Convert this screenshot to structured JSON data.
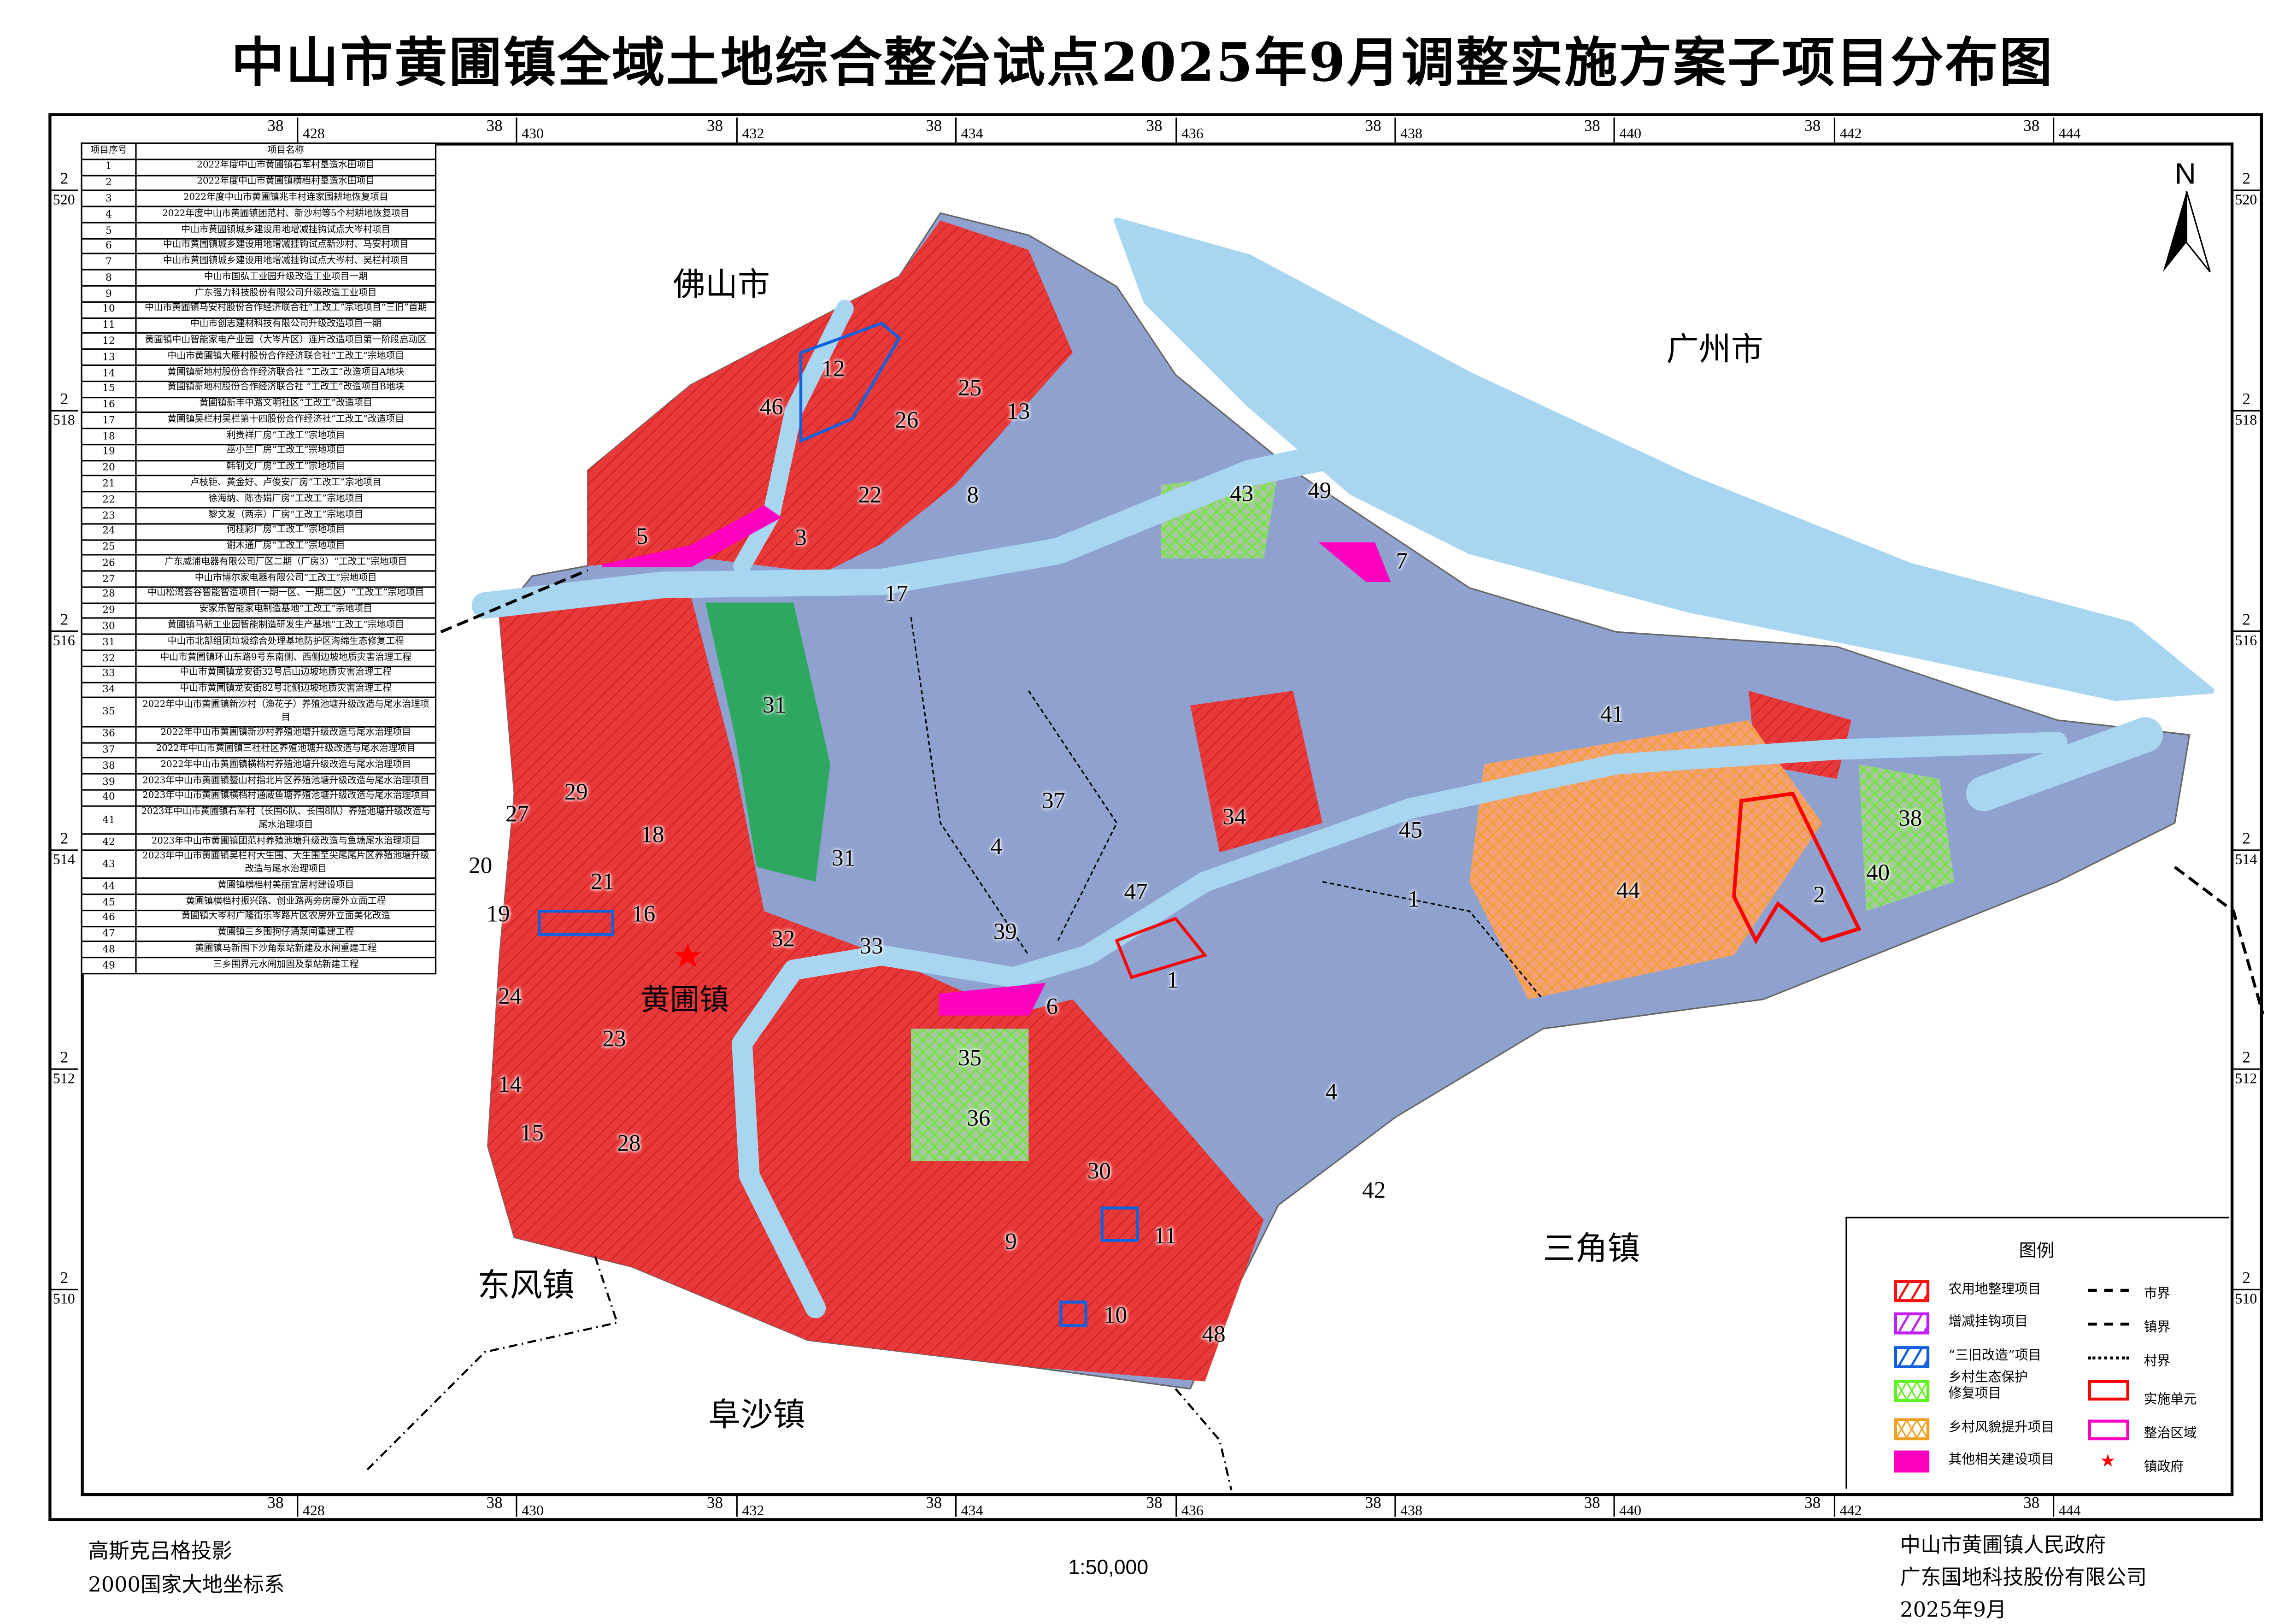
{
  "title": "中山市黄圃镇全域土地综合整治试点2025年9月调整实施方案子项目分布图",
  "grid": {
    "x_prefix": "38",
    "x_labels": [
      "428",
      "430",
      "432",
      "434",
      "436",
      "438",
      "440",
      "442",
      "444"
    ],
    "y_prefix": "2",
    "y_labels": [
      "520",
      "518",
      "516",
      "514",
      "512",
      "510"
    ]
  },
  "north_label": "N",
  "places": {
    "foshan": "佛山市",
    "guangzhou": "广州市",
    "huangpu": "黄圃镇",
    "sanjiao": "三角镇",
    "dongfeng": "东风镇",
    "fusha": "阜沙镇"
  },
  "project_labels": [
    "12",
    "46",
    "25",
    "13",
    "26",
    "22",
    "8",
    "3",
    "5",
    "43",
    "49",
    "7",
    "17",
    "31",
    "41",
    "37",
    "34",
    "45",
    "38",
    "40",
    "44",
    "2",
    "1",
    "47",
    "29",
    "27",
    "18",
    "4",
    "31",
    "20",
    "21",
    "16",
    "19",
    "39",
    "32",
    "33",
    "1",
    "6",
    "24",
    "23",
    "35",
    "4",
    "14",
    "36",
    "15",
    "28",
    "30",
    "42",
    "9",
    "11",
    "10",
    "48"
  ],
  "table": {
    "headers": [
      "项目序号",
      "项目名称"
    ],
    "rows": [
      [
        "1",
        "2022年度中山市黄圃镇石军村垦造水田项目"
      ],
      [
        "2",
        "2022年度中山市黄圃镇横档村垦造水田项目"
      ],
      [
        "3",
        "2022年度中山市黄圃镇兆丰村连家围耕地恢复项目"
      ],
      [
        "4",
        "2022年度中山市黄圃镇团范村、新沙村等5个村耕地恢复项目"
      ],
      [
        "5",
        "中山市黄圃镇城乡建设用地增减挂钩试点大岑村项目"
      ],
      [
        "6",
        "中山市黄圃镇城乡建设用地增减挂钩试点新沙村、马安村项目"
      ],
      [
        "7",
        "中山市黄圃镇城乡建设用地增减挂钩试点大岑村、吴栏村项目"
      ],
      [
        "8",
        "中山市国弘工业园升级改造工业项目一期"
      ],
      [
        "9",
        "广东强力科技股份有限公司升级改造工业项目"
      ],
      [
        "10",
        "中山市黄圃镇马安村股份合作经济联合社“工改工”宗地项目“三旧”首期"
      ],
      [
        "11",
        "中山市创志建材科技有限公司升级改造项目一期"
      ],
      [
        "12",
        "黄圃镇中山智能家电产业园（大岑片区）连片改造项目第一阶段启动区"
      ],
      [
        "13",
        "中山市黄圃镇大雁村股份合作经济联合社“工改工”宗地项目"
      ],
      [
        "14",
        "黄圃镇新地村股份合作经济联合社 “工改工”改造项目A地块"
      ],
      [
        "15",
        "黄圃镇新地村股份合作经济联合社 “工改工”改造项目B地块"
      ],
      [
        "16",
        "黄圃镇新丰中路文明社区“工改工”改造项目"
      ],
      [
        "17",
        "黄圃镇吴栏村吴栏第十四股份合作经济社“工改工”改造项目"
      ],
      [
        "18",
        "利贵祥厂房“工改工”宗地项目"
      ],
      [
        "19",
        "巫小兰厂房“工改工”宗地项目"
      ],
      [
        "20",
        "韩钊文厂房“工改工”宗地项目"
      ],
      [
        "21",
        "卢枝钜、黄金好、卢俊安厂房“工改工”宗地项目"
      ],
      [
        "22",
        "徐海纳、陈杏娟厂房“工改工”宗地项目"
      ],
      [
        "23",
        "黎文发（两宗）厂房“工改工”宗地项目"
      ],
      [
        "24",
        "何桂彩厂房“工改工”宗地项目"
      ],
      [
        "25",
        "谢木通厂房“工改工”宗地项目"
      ],
      [
        "26",
        "广东威浦电器有限公司厂区二期（厂房3）“工改工”宗地项目"
      ],
      [
        "27",
        "中山市博尔家电器有限公司“工改工”宗地项目"
      ],
      [
        "28",
        "中山松湾荟谷智能智造项目(一期一区、一期二区）“工改工”宗地项目"
      ],
      [
        "29",
        "安家乐智能家电制造基地“工改工”宗地项目"
      ],
      [
        "30",
        "黄圃镇马新工业园智能制造研发生产基地“工改工”宗地项目"
      ],
      [
        "31",
        "中山市北部组团垃圾综合处理基地防护区海绵生态修复工程"
      ],
      [
        "32",
        "中山市黄圃镇环山东路9号东南侧、西侧边坡地质灾害治理工程"
      ],
      [
        "33",
        "中山市黄圃镇龙安街32号后山边坡地质灾害治理工程"
      ],
      [
        "34",
        "中山市黄圃镇龙安街82号北侧边坡地质灾害治理工程"
      ],
      [
        "35",
        "2022年中山市黄圃镇新沙村（渔花子）养殖池塘升级改造与尾水治理项目"
      ],
      [
        "36",
        "2022年中山市黄圃镇新沙村养殖池塘升级改造与尾水治理项目"
      ],
      [
        "37",
        "2022年中山市黄圃镇三社社区养殖池塘升级改造与尾水治理项目"
      ],
      [
        "38",
        "2022年中山市黄圃镇横档村养殖池塘升级改造与尾水治理项目"
      ],
      [
        "39",
        "2023年中山市黄圃镇鳌山村指北片区养殖池塘升级改造与尾水治理项目"
      ],
      [
        "40",
        "2023年中山市黄圃镇横档村通威鱼塘养殖池塘升级改造与尾水治理项目"
      ],
      [
        "41",
        "2023年中山市黄圃镇石军村（长围6队、长围8队）养殖池塘升级改造与尾水治理项目"
      ],
      [
        "42",
        "2023年中山市黄圃镇团范村养殖池塘升级改造与鱼塘尾水治理项目"
      ],
      [
        "43",
        "2023年中山市黄圃镇吴栏村大生围、大生围至尖尾尾片区养殖池塘升级改造与尾水治理项目"
      ],
      [
        "44",
        "黄圃镇横档村美丽宜居村建设项目"
      ],
      [
        "45",
        "黄圃镇横档村振兴路、创业路两旁房屋外立面工程"
      ],
      [
        "46",
        "黄圃镇大岑村广隆街乐岑路片区农房外立面美化改造"
      ],
      [
        "47",
        "黄圃镇三乡围狗仔涌泵闸重建工程"
      ],
      [
        "48",
        "黄圃镇马新围下沙角泵站新建及水闸重建工程"
      ],
      [
        "49",
        "三乡围界元水闸加固及泵站新建工程"
      ]
    ]
  },
  "legend": {
    "title": "图例",
    "items": [
      {
        "label": "农用地整理项目",
        "color": "#ff1010",
        "style": "hatch"
      },
      {
        "label": "增减挂钩项目",
        "color": "#c020f0",
        "style": "hatch"
      },
      {
        "label": "“三旧改造”项目",
        "color": "#1060e0",
        "style": "hatch"
      },
      {
        "label": "乡村生态保护修复项目",
        "color": "#60f020",
        "style": "crosshatch"
      },
      {
        "label": "乡村风貌提升项目",
        "color": "#f0a020",
        "style": "crosshatch"
      },
      {
        "label": "其他相关建设项目",
        "color": "#ff00c0",
        "style": "solid"
      }
    ],
    "lines": [
      {
        "label": "市界",
        "style": "dash"
      },
      {
        "label": "镇界",
        "style": "dash-dot-dot"
      },
      {
        "label": "村界",
        "style": "short-dash"
      },
      {
        "label": "实施单元",
        "color": "#ff0000",
        "style": "outline"
      },
      {
        "label": "整治区域",
        "color": "#ff00c0",
        "style": "outline"
      },
      {
        "label": "镇政府",
        "color": "#ff0000",
        "style": "star"
      }
    ]
  },
  "footer": {
    "projection": "高斯克吕格投影",
    "crs": "2000国家大地坐标系",
    "scale": "1:50,000",
    "org1": "中山市黄圃镇人民政府",
    "org2": "广东国地科技股份有限公司",
    "date": "2025年9月"
  },
  "colors": {
    "river": "#a8d6f0",
    "urban": "#e8393a",
    "farmland": "#8fa2cf",
    "forest": "#2ea860"
  }
}
